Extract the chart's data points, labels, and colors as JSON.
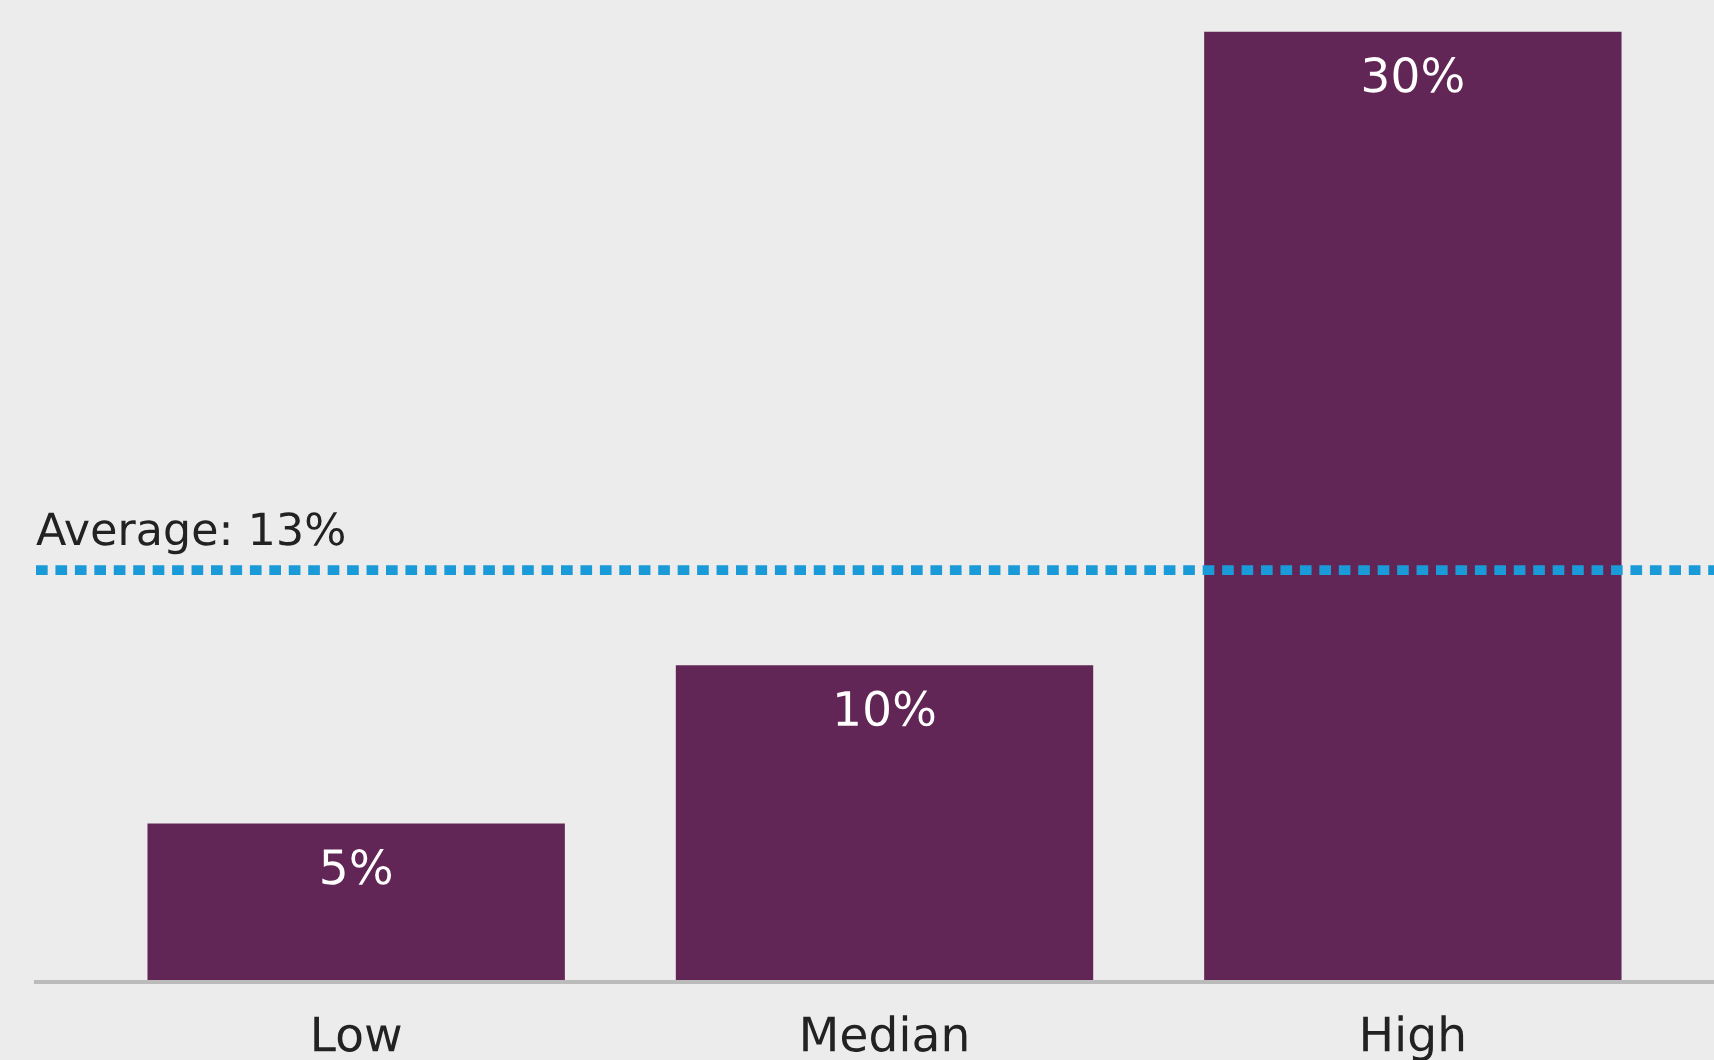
{
  "chart_data": {
    "type": "bar",
    "categories": [
      "Low",
      "Median",
      "High"
    ],
    "values": [
      5,
      10,
      30
    ],
    "color": "#622656",
    "value_labels": [
      "5%",
      "10%",
      "30%"
    ],
    "ylim": [
      0,
      31
    ],
    "tick_labels": "x",
    "grid": false,
    "legend": false,
    "ref_lines": [
      {
        "axis": "y",
        "value": 13,
        "label": "Average: 13%",
        "color": "#1a9ad6",
        "line_style": "dotted"
      }
    ]
  }
}
